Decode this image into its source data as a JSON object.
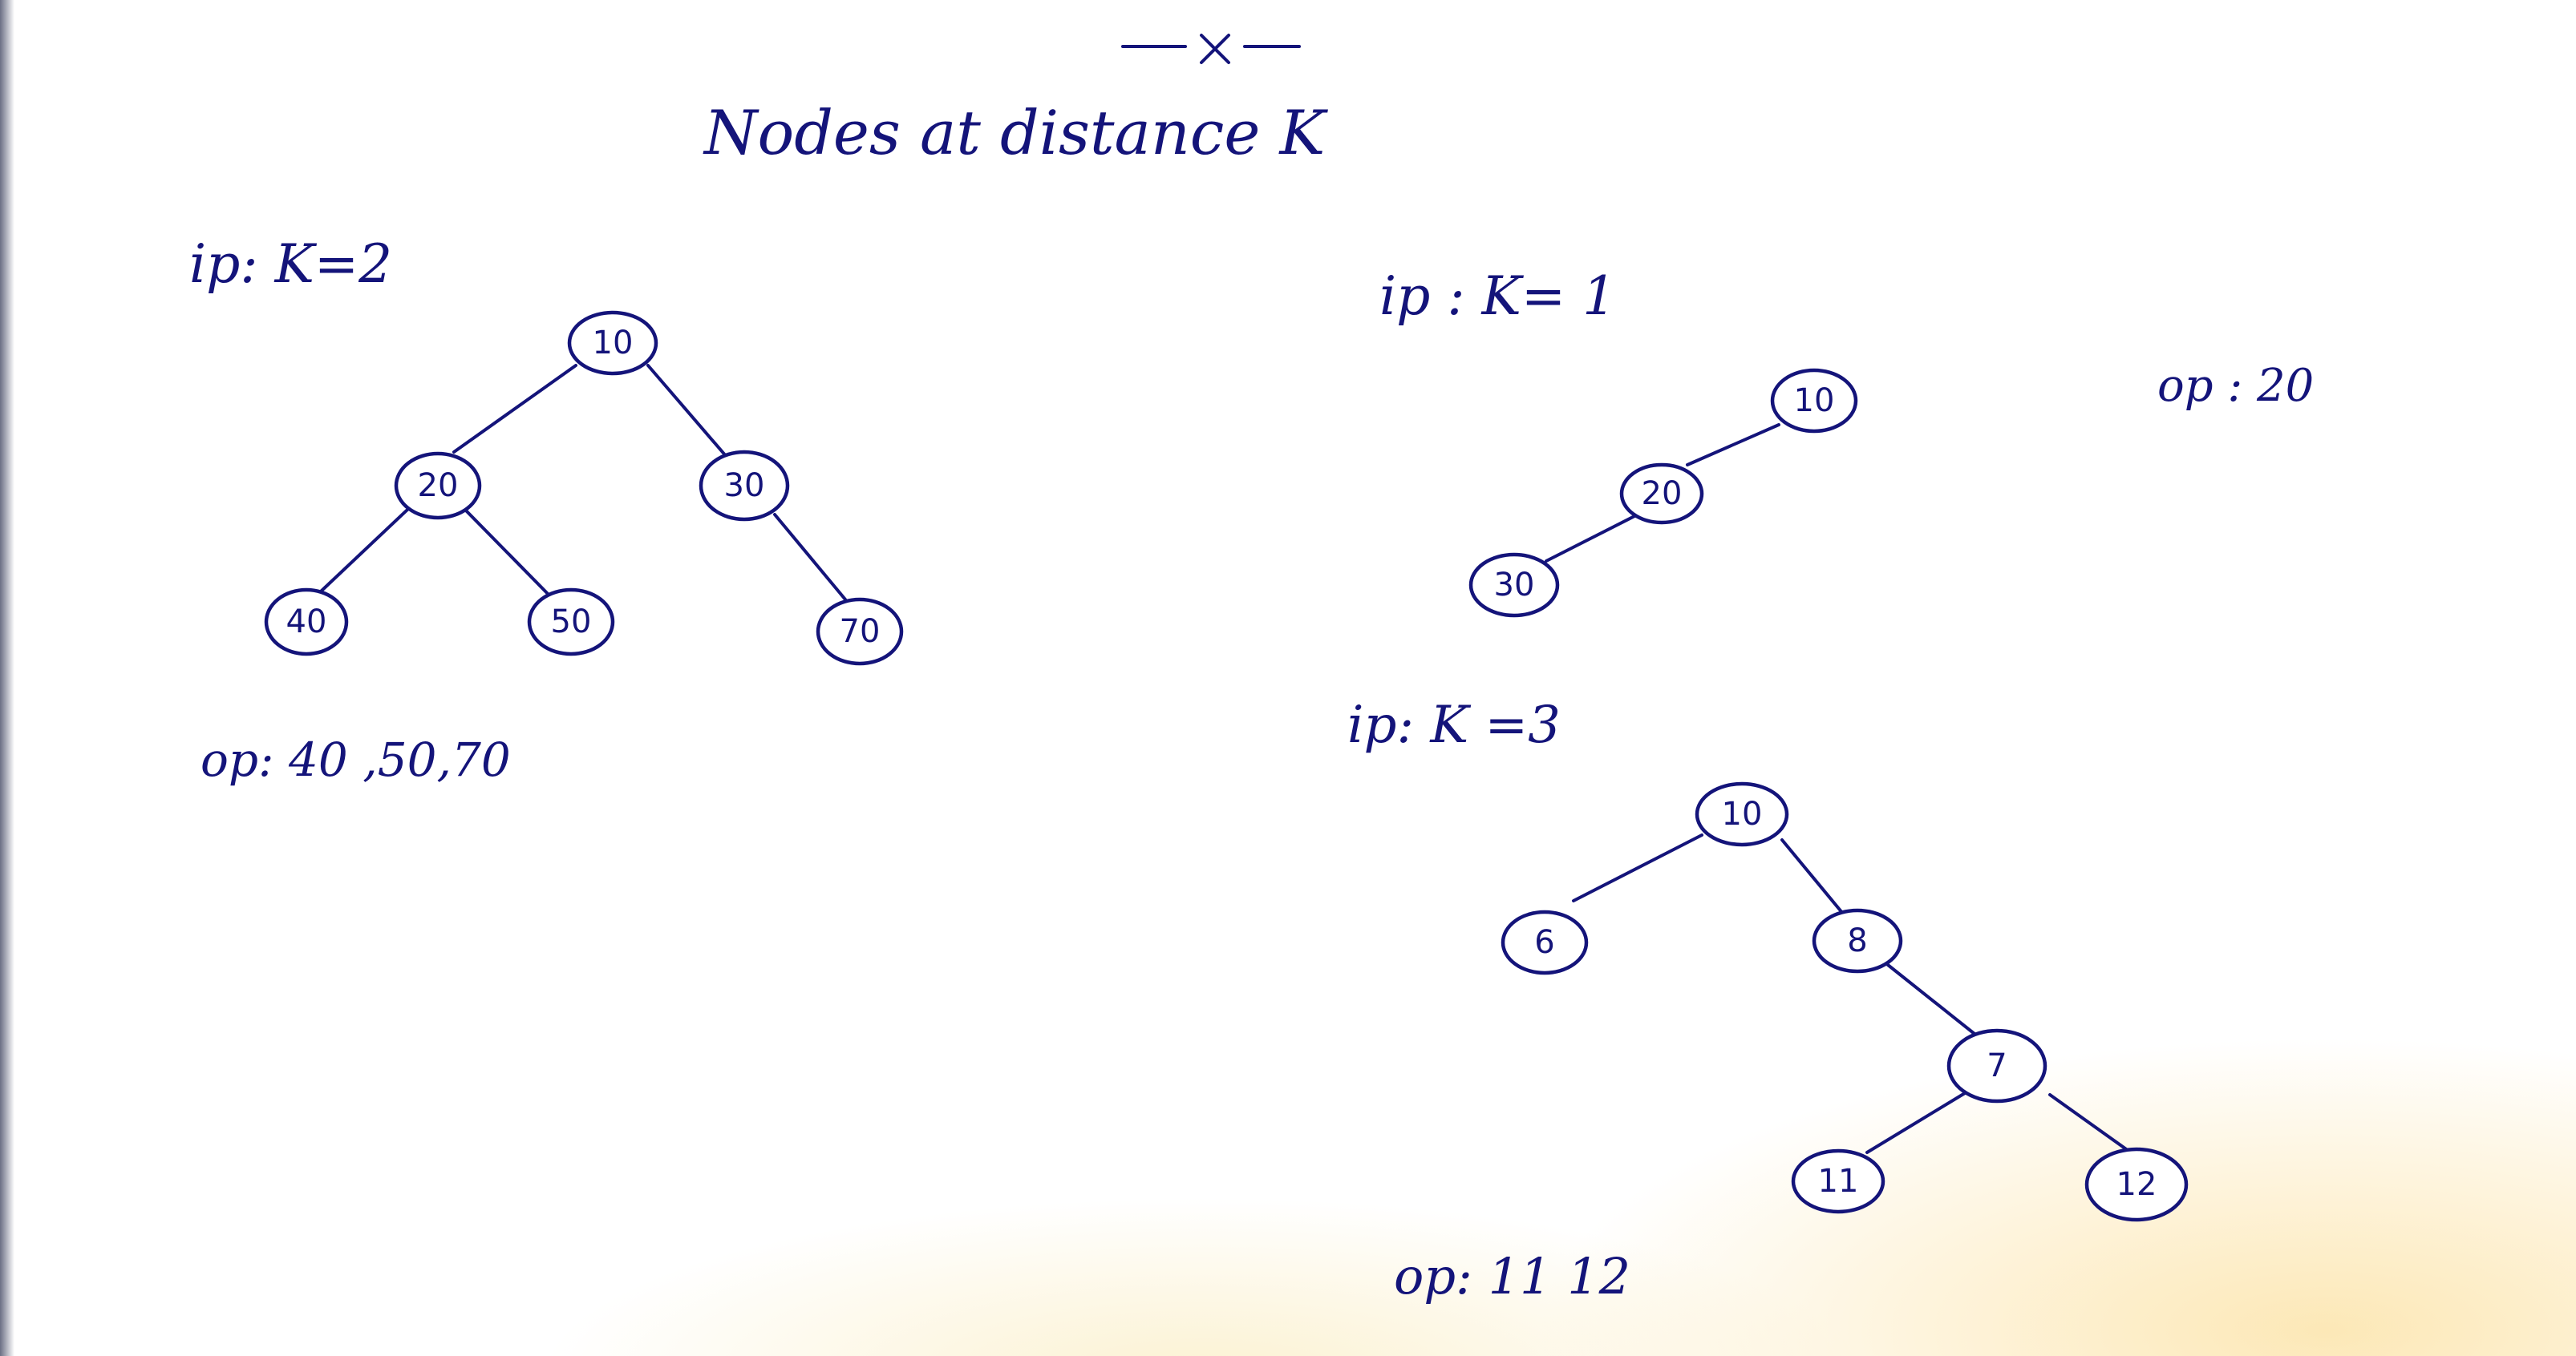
{
  "page": {
    "title": "Nodes at distance K",
    "ink_color": "#14147a"
  },
  "examples": [
    {
      "input_label": "ip: K=2",
      "output_label": "op: 40 ,50,70",
      "nodes": [
        "10",
        "20",
        "30",
        "40",
        "50",
        "70"
      ]
    },
    {
      "input_label": "ip : K= 1",
      "output_label": "op : 20",
      "nodes": [
        "10",
        "20",
        "30"
      ]
    },
    {
      "input_label": "ip: K =3",
      "output_label": "op: 11 12",
      "nodes": [
        "10",
        "6",
        "8",
        "7",
        "11",
        "12"
      ]
    }
  ]
}
